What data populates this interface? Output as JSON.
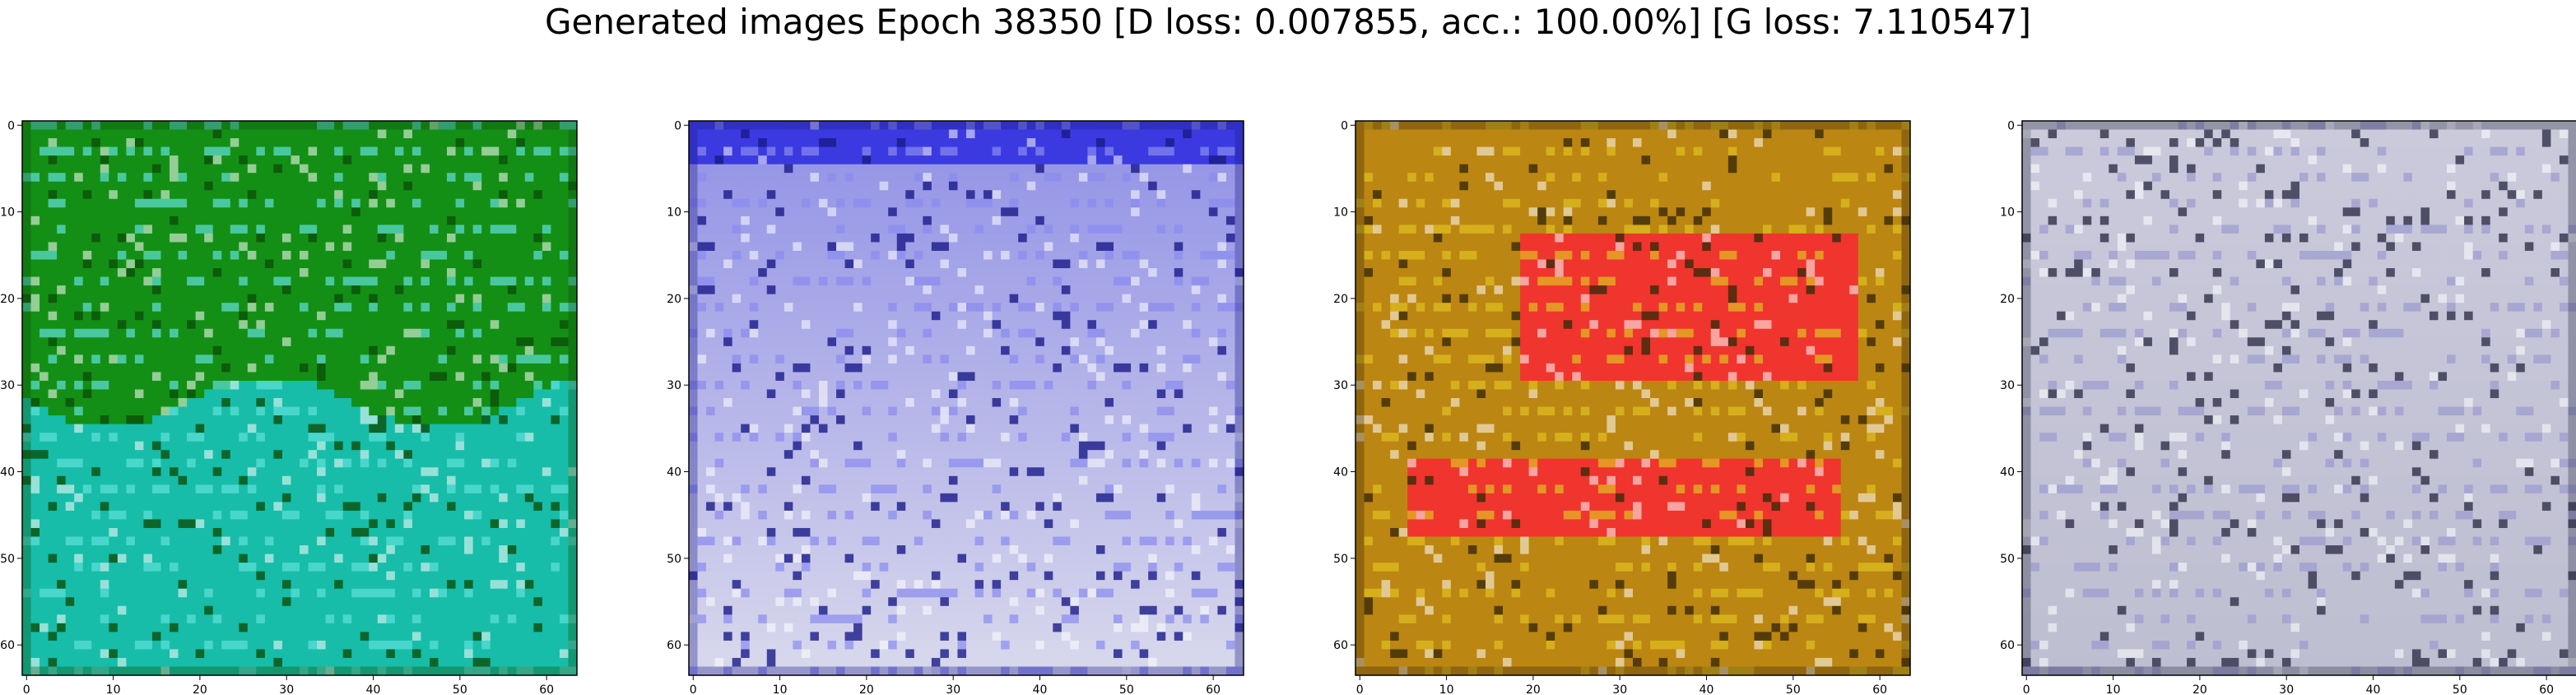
{
  "figure": {
    "suptitle": "Generated images Epoch 38350 [D loss: 0.007855, acc.: 100.00%] [G loss: 7.110547]"
  },
  "axis": {
    "ticks": [
      0,
      10,
      20,
      30,
      40,
      50,
      60
    ],
    "range": [
      -0.5,
      63.5
    ]
  },
  "panels": [
    {
      "id": "img-1",
      "palette": {
        "top": "#148c0c",
        "bottom": "#18c6c4",
        "accent": "#5fe0dc",
        "dark": "#0a4f0a"
      },
      "description_kind": "green-cyan"
    },
    {
      "id": "img-2",
      "palette": {
        "top": "#3a3ae0",
        "bottom": "#d8d8ec",
        "accent": "#8a8af0",
        "dark": "#1a1a8a"
      },
      "description_kind": "blue-white"
    },
    {
      "id": "img-3",
      "palette": {
        "top": "#b98a10",
        "bottom": "#f23030",
        "accent": "#e0c020",
        "dark": "#3a2a08"
      },
      "description_kind": "gold-red"
    },
    {
      "id": "img-4",
      "palette": {
        "top": "#d6d6e6",
        "bottom": "#b8b8cc",
        "accent": "#9a9ad0",
        "dark": "#30304a"
      },
      "description_kind": "grey-lavender"
    }
  ]
}
